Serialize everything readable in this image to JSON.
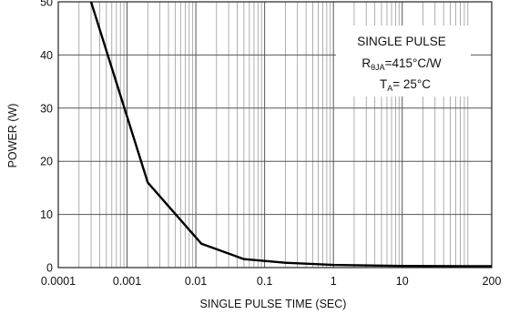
{
  "chart_data": {
    "type": "line",
    "title": "",
    "xlabel": "SINGLE PULSE TIME (SEC)",
    "ylabel": "POWER (W)",
    "x_scale": "log",
    "xlim": [
      0.0001,
      200
    ],
    "ylim": [
      0,
      50
    ],
    "x_ticks": [
      {
        "value": 0.0001,
        "label": "0.0001"
      },
      {
        "value": 0.001,
        "label": "0.001"
      },
      {
        "value": 0.01,
        "label": "0.01"
      },
      {
        "value": 0.1,
        "label": "0.1"
      },
      {
        "value": 1,
        "label": "1"
      },
      {
        "value": 10,
        "label": "10"
      },
      {
        "value": 200,
        "label": "200"
      }
    ],
    "y_ticks": [
      0,
      10,
      20,
      30,
      40,
      50
    ],
    "grid": true,
    "series": [
      {
        "x": [
          0.0003,
          0.002,
          0.012,
          0.05,
          0.2,
          1,
          10,
          200
        ],
        "y": [
          50,
          16,
          4.5,
          1.6,
          0.9,
          0.5,
          0.3,
          0.25
        ]
      }
    ],
    "annotation": {
      "line1": "SINGLE PULSE",
      "line2_prefix": "R",
      "line2_sub": "θJA",
      "line2_suffix": "=415°C/W",
      "line3_prefix": "T",
      "line3_sub": "A",
      "line3_suffix": "= 25°C"
    }
  }
}
